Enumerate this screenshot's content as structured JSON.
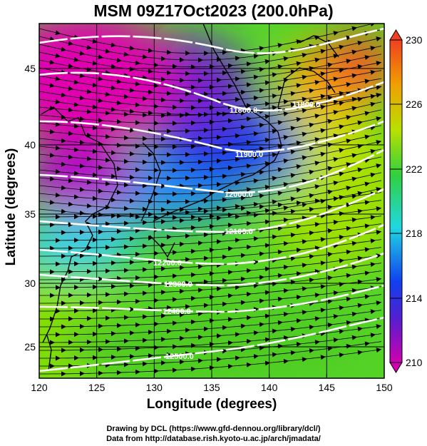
{
  "title": "MSM 09Z17Oct2023 (200.0hPa)",
  "xlabel": "Longitude (degrees)",
  "ylabel": "Latitude  (degrees)",
  "x_ticks": [
    "120",
    "125",
    "130",
    "135",
    "140",
    "145",
    "150"
  ],
  "y_ticks": [
    "25",
    "30",
    "35",
    "40",
    "45"
  ],
  "colorbar": {
    "ticks": [
      "230",
      "226",
      "222",
      "218",
      "214",
      "210"
    ],
    "min": 210,
    "max": 230,
    "colors": [
      "#d000b0",
      "#5020d0",
      "#1040f0",
      "#20d8e0",
      "#30d040",
      "#b8e000",
      "#f0a000",
      "#f04020"
    ]
  },
  "contour_labels": [
    "11800.0",
    "11800.0",
    "11900.0",
    "12000.0",
    "12100.0",
    "12200.0",
    "12300.0",
    "12400.0",
    "12500.0"
  ],
  "credit_line1": "Drawing by DCL (https://www.gfd-dennou.org/library/dcl/)",
  "credit_line2": "Data from http://database.rish.kyoto-u.ac.jp/arch/jmadata/",
  "chart_data": {
    "type": "heatmap",
    "title": "MSM 09Z17Oct2023 (200.0hPa)",
    "xlabel": "Longitude (degrees)",
    "ylabel": "Latitude  (degrees)",
    "xlim": [
      120,
      150
    ],
    "ylim": [
      22.4,
      47.6
    ],
    "colorbar_range": [
      210,
      230
    ],
    "contour_levels": [
      11800,
      11900,
      12000,
      12100,
      12200,
      12300,
      12400,
      12500
    ],
    "grid": true
  }
}
